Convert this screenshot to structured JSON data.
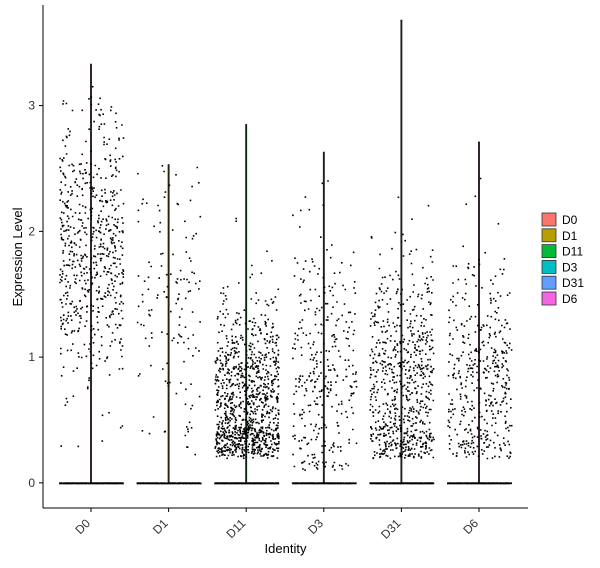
{
  "chart_data": {
    "type": "scatter",
    "subtype": "violin-jitter",
    "title": "",
    "xlabel": "Identity",
    "ylabel": "Expression Level",
    "categories": [
      "D0",
      "D1",
      "D11",
      "D3",
      "D31",
      "D6"
    ],
    "ylim": [
      -0.2,
      3.8
    ],
    "yticks": [
      0,
      1,
      2,
      3
    ],
    "grid": false,
    "legend_position": "right",
    "legend": [
      "D0",
      "D1",
      "D11",
      "D3",
      "D31",
      "D6"
    ],
    "colors": {
      "D0": "#F8766D",
      "D1": "#B79F00",
      "D11": "#00BA38",
      "D3": "#00BFC4",
      "D31": "#619CFF",
      "D6": "#F564E3"
    },
    "point_color": "#000000",
    "series": [
      {
        "name": "D0",
        "max": 3.33,
        "n_zero": 1300,
        "n_points": 620,
        "expr_mean": 1.85,
        "expr_sd": 0.55,
        "expr_min": 0.25
      },
      {
        "name": "D1",
        "max": 2.53,
        "n_zero": 900,
        "n_points": 140,
        "expr_mean": 1.45,
        "expr_sd": 0.6,
        "expr_min": 0.2
      },
      {
        "name": "D11",
        "max": 2.85,
        "n_zero": 1200,
        "n_points": 1050,
        "expr_mean": 0.6,
        "expr_sd": 0.45,
        "expr_min": 0.2
      },
      {
        "name": "D3",
        "max": 2.63,
        "n_zero": 900,
        "n_points": 330,
        "expr_mean": 0.85,
        "expr_sd": 0.55,
        "expr_min": 0.1
      },
      {
        "name": "D31",
        "max": 3.68,
        "n_zero": 1200,
        "n_points": 720,
        "expr_mean": 0.75,
        "expr_sd": 0.55,
        "expr_min": 0.2
      },
      {
        "name": "D6",
        "max": 2.71,
        "n_zero": 1000,
        "n_points": 430,
        "expr_mean": 0.8,
        "expr_sd": 0.5,
        "expr_min": 0.2
      }
    ]
  }
}
